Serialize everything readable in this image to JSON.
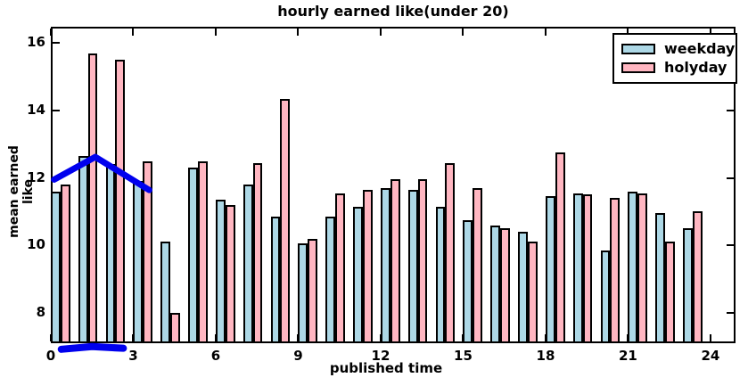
{
  "chart_data": {
    "type": "bar",
    "title": "hourly earned like(under 20)",
    "xlabel": "published time",
    "ylabel": "mean earned like",
    "categories": [
      0,
      1,
      2,
      3,
      4,
      5,
      6,
      7,
      8,
      9,
      10,
      11,
      12,
      13,
      14,
      15,
      16,
      17,
      18,
      19,
      20,
      21,
      22,
      23
    ],
    "series": [
      {
        "name": "weekday",
        "color": "#ADD8E6",
        "values": [
          11.6,
          12.65,
          12.4,
          11.9,
          10.1,
          12.3,
          11.35,
          11.8,
          10.85,
          10.05,
          10.85,
          11.15,
          11.7,
          11.65,
          11.15,
          10.75,
          10.6,
          10.4,
          11.45,
          11.55,
          9.85,
          11.6,
          10.95,
          10.5
        ]
      },
      {
        "name": "holyday",
        "color": "#FFB6C1",
        "values": [
          11.8,
          15.7,
          15.5,
          12.5,
          8.0,
          12.5,
          11.2,
          12.45,
          14.35,
          10.2,
          11.55,
          11.65,
          11.95,
          11.95,
          12.45,
          11.7,
          10.5,
          10.1,
          12.75,
          11.5,
          11.4,
          11.55,
          10.1,
          11.0
        ]
      }
    ],
    "bar_width": 0.35,
    "xlim": [
      0,
      24.91
    ],
    "ylim": [
      7.1,
      16.48
    ],
    "xticks": [
      0,
      3,
      6,
      9,
      12,
      15,
      18,
      21,
      24
    ],
    "yticks": [
      8,
      10,
      12,
      14,
      16
    ],
    "grid": false,
    "legend_position": "upper right",
    "edge_color": "#000000",
    "annotation_color": "#0000ee",
    "annotations": [
      {
        "id": "blue-curve",
        "type": "polyline",
        "stroke_width": 7,
        "points": [
          [
            0.12,
            11.95
          ],
          [
            1.62,
            12.62
          ],
          [
            3.58,
            11.64
          ]
        ]
      },
      {
        "id": "blue-underline",
        "type": "polyline",
        "stroke_width": 8,
        "points": [
          [
            0.38,
            6.92
          ],
          [
            1.5,
            7.0
          ],
          [
            2.64,
            6.95
          ]
        ]
      }
    ]
  }
}
